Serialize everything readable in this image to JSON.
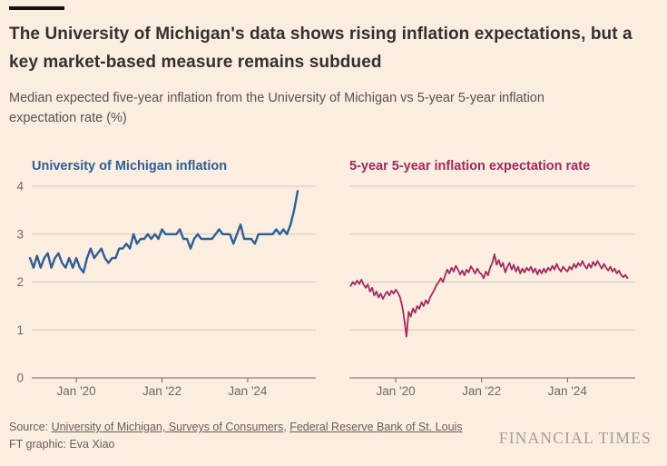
{
  "header": {
    "title": "The University of Michigan's data shows rising inflation expectations, but a key market-based measure remains subdued",
    "subtitle": "Median expected five-year inflation from the University of Michigan vs 5-year 5-year inflation expectation rate (%)"
  },
  "colors": {
    "background": "#fbeee1",
    "michigan_line": "#2e5e96",
    "expectation_line": "#a5295c",
    "grid": "#d5c9be",
    "axis": "#6f6861"
  },
  "chart_data": [
    {
      "type": "line",
      "title": "University of Michigan inflation",
      "color": "#2e5e96",
      "line_width": 2.4,
      "x_start": 2018.917,
      "x_step": 0.0833333,
      "values": [
        2.5,
        2.3,
        2.55,
        2.3,
        2.5,
        2.6,
        2.3,
        2.5,
        2.6,
        2.4,
        2.3,
        2.5,
        2.3,
        2.5,
        2.3,
        2.2,
        2.5,
        2.7,
        2.5,
        2.6,
        2.7,
        2.5,
        2.4,
        2.5,
        2.5,
        2.7,
        2.7,
        2.8,
        2.7,
        3.0,
        2.8,
        2.9,
        2.9,
        3.0,
        2.9,
        3.0,
        2.9,
        3.1,
        3.0,
        3.0,
        3.0,
        3.0,
        3.1,
        2.9,
        2.9,
        2.7,
        2.9,
        3.0,
        2.9,
        2.9,
        2.9,
        2.9,
        3.0,
        3.1,
        3.0,
        3.0,
        3.0,
        2.8,
        3.0,
        3.2,
        2.9,
        2.9,
        2.9,
        2.8,
        3.0,
        3.0,
        3.0,
        3.0,
        3.0,
        3.1,
        3.0,
        3.1,
        3.0,
        3.2,
        3.5,
        3.9
      ],
      "x_ticks": [
        {
          "value": 2020,
          "label": "Jan '20"
        },
        {
          "value": 2022,
          "label": "Jan '22"
        },
        {
          "value": 2024,
          "label": "Jan '24"
        }
      ],
      "y_ticks": [
        0,
        1,
        2,
        3,
        4
      ],
      "ylim": [
        0,
        4
      ],
      "xlim": [
        2018.96,
        2025.59
      ],
      "show_y_labels": true,
      "grid": true,
      "legend_position": "top-left"
    },
    {
      "type": "line",
      "title": "5-year 5-year inflation expectation rate",
      "color": "#a5295c",
      "line_width": 1.8,
      "x_start": 2018.95,
      "x_step": 0.05,
      "values": [
        1.92,
        2.0,
        1.95,
        2.03,
        1.96,
        2.05,
        1.95,
        1.88,
        1.95,
        1.8,
        1.88,
        1.72,
        1.8,
        1.68,
        1.76,
        1.65,
        1.74,
        1.8,
        1.72,
        1.82,
        1.76,
        1.84,
        1.78,
        1.68,
        1.5,
        1.22,
        0.86,
        1.38,
        1.28,
        1.45,
        1.36,
        1.5,
        1.44,
        1.58,
        1.5,
        1.62,
        1.55,
        1.68,
        1.76,
        1.84,
        1.94,
        2.0,
        2.08,
        2.0,
        2.14,
        2.26,
        2.18,
        2.3,
        2.22,
        2.34,
        2.26,
        2.16,
        2.24,
        2.14,
        2.26,
        2.2,
        2.33,
        2.26,
        2.18,
        2.28,
        2.2,
        2.16,
        2.08,
        2.22,
        2.14,
        2.3,
        2.4,
        2.58,
        2.36,
        2.46,
        2.32,
        2.4,
        2.2,
        2.32,
        2.4,
        2.26,
        2.36,
        2.22,
        2.32,
        2.18,
        2.28,
        2.2,
        2.3,
        2.24,
        2.32,
        2.2,
        2.28,
        2.16,
        2.26,
        2.18,
        2.28,
        2.2,
        2.3,
        2.24,
        2.34,
        2.26,
        2.38,
        2.28,
        2.22,
        2.32,
        2.26,
        2.22,
        2.32,
        2.26,
        2.38,
        2.3,
        2.4,
        2.34,
        2.44,
        2.34,
        2.28,
        2.38,
        2.3,
        2.42,
        2.34,
        2.44,
        2.36,
        2.28,
        2.38,
        2.3,
        2.24,
        2.32,
        2.22,
        2.28,
        2.18,
        2.24,
        2.15,
        2.1,
        2.15,
        2.08
      ],
      "x_ticks": [
        {
          "value": 2020,
          "label": "Jan '20"
        },
        {
          "value": 2022,
          "label": "Jan '22"
        },
        {
          "value": 2024,
          "label": "Jan '24"
        }
      ],
      "y_ticks": [
        0,
        1,
        2,
        3,
        4
      ],
      "ylim": [
        0,
        4
      ],
      "xlim": [
        2018.92,
        2025.58
      ],
      "show_y_labels": false,
      "grid": true,
      "legend_position": "top-left"
    }
  ],
  "footer": {
    "source_prefix": "Source:",
    "source_links": [
      "University of Michigan, Surveys of Consumers",
      "Federal Reserve Bank of St. Louis"
    ],
    "source_separator": ", ",
    "credit": "FT graphic: Eva Xiao",
    "brand": "FINANCIAL TIMES"
  }
}
